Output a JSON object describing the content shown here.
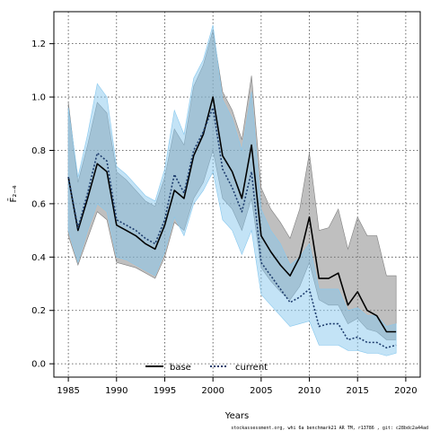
{
  "chart_data": {
    "type": "line",
    "title": "",
    "xlabel": "Years",
    "ylabel": "F̄₂₋₄",
    "xlim": [
      1983.5,
      2021.5
    ],
    "ylim": [
      -0.05,
      1.32
    ],
    "xticks": [
      1985,
      1990,
      1995,
      2000,
      2005,
      2010,
      2015,
      2020
    ],
    "yticks": [
      0.0,
      0.2,
      0.4,
      0.6,
      0.8,
      1.0,
      1.2
    ],
    "grid": true,
    "legend_position": "bottom-center",
    "series": [
      {
        "name": "base",
        "color": "#000000",
        "band_color": "#7f7f7f",
        "style": "solid",
        "x": [
          1985,
          1986,
          1987,
          1988,
          1989,
          1990,
          1991,
          1992,
          1993,
          1994,
          1995,
          1996,
          1997,
          1998,
          1999,
          2000,
          2001,
          2002,
          2003,
          2004,
          2005,
          2006,
          2007,
          2008,
          2009,
          2010,
          2011,
          2012,
          2013,
          2014,
          2015,
          2016,
          2017,
          2018,
          2019
        ],
        "y": [
          0.7,
          0.5,
          0.62,
          0.75,
          0.72,
          0.52,
          0.5,
          0.48,
          0.45,
          0.43,
          0.52,
          0.65,
          0.62,
          0.78,
          0.86,
          1.0,
          0.78,
          0.72,
          0.62,
          0.82,
          0.48,
          0.42,
          0.37,
          0.33,
          0.4,
          0.55,
          0.32,
          0.32,
          0.34,
          0.22,
          0.27,
          0.2,
          0.18,
          0.12,
          0.12
        ],
        "lower": [
          0.48,
          0.37,
          0.47,
          0.57,
          0.54,
          0.38,
          0.37,
          0.36,
          0.34,
          0.32,
          0.4,
          0.53,
          0.5,
          0.62,
          0.68,
          0.8,
          0.62,
          0.58,
          0.5,
          0.62,
          0.36,
          0.31,
          0.27,
          0.24,
          0.29,
          0.38,
          0.24,
          0.22,
          0.22,
          0.15,
          0.17,
          0.13,
          0.12,
          0.09,
          0.09
        ],
        "upper": [
          0.98,
          0.68,
          0.82,
          0.98,
          0.94,
          0.72,
          0.69,
          0.65,
          0.61,
          0.59,
          0.7,
          0.88,
          0.82,
          1.04,
          1.12,
          1.25,
          1.02,
          0.95,
          0.84,
          1.08,
          0.66,
          0.58,
          0.53,
          0.47,
          0.58,
          0.79,
          0.5,
          0.51,
          0.58,
          0.43,
          0.55,
          0.48,
          0.48,
          0.33,
          0.33
        ]
      },
      {
        "name": "current",
        "color": "#1e3d6e",
        "band_color": "#87c8ee",
        "style": "dotted",
        "x": [
          1985,
          1986,
          1987,
          1988,
          1989,
          1990,
          1991,
          1992,
          1993,
          1994,
          1995,
          1996,
          1997,
          1998,
          1999,
          2000,
          2001,
          2002,
          2003,
          2004,
          2005,
          2006,
          2007,
          2008,
          2009,
          2010,
          2011,
          2012,
          2013,
          2014,
          2015,
          2016,
          2017,
          2018,
          2019
        ],
        "y": [
          0.7,
          0.51,
          0.64,
          0.79,
          0.76,
          0.54,
          0.52,
          0.5,
          0.47,
          0.45,
          0.54,
          0.71,
          0.64,
          0.8,
          0.87,
          0.96,
          0.73,
          0.66,
          0.57,
          0.72,
          0.38,
          0.33,
          0.28,
          0.23,
          0.25,
          0.28,
          0.14,
          0.15,
          0.15,
          0.09,
          0.1,
          0.08,
          0.08,
          0.06,
          0.07
        ],
        "lower": [
          0.5,
          0.38,
          0.5,
          0.6,
          0.57,
          0.4,
          0.39,
          0.37,
          0.35,
          0.33,
          0.42,
          0.55,
          0.48,
          0.6,
          0.65,
          0.72,
          0.54,
          0.5,
          0.41,
          0.5,
          0.26,
          0.22,
          0.18,
          0.14,
          0.15,
          0.16,
          0.07,
          0.07,
          0.07,
          0.05,
          0.05,
          0.04,
          0.04,
          0.03,
          0.04
        ],
        "upper": [
          0.96,
          0.7,
          0.86,
          1.05,
          1.0,
          0.74,
          0.71,
          0.67,
          0.63,
          0.61,
          0.73,
          0.95,
          0.86,
          1.07,
          1.14,
          1.27,
          0.99,
          0.92,
          0.8,
          1.02,
          0.58,
          0.5,
          0.45,
          0.37,
          0.4,
          0.45,
          0.28,
          0.28,
          0.28,
          0.2,
          0.21,
          0.18,
          0.18,
          0.14,
          0.15
        ]
      }
    ]
  },
  "footer": "stockassessment.org, whi 6a benchmark21 AR TM, r13786 , git: c28bdc2a44ad"
}
